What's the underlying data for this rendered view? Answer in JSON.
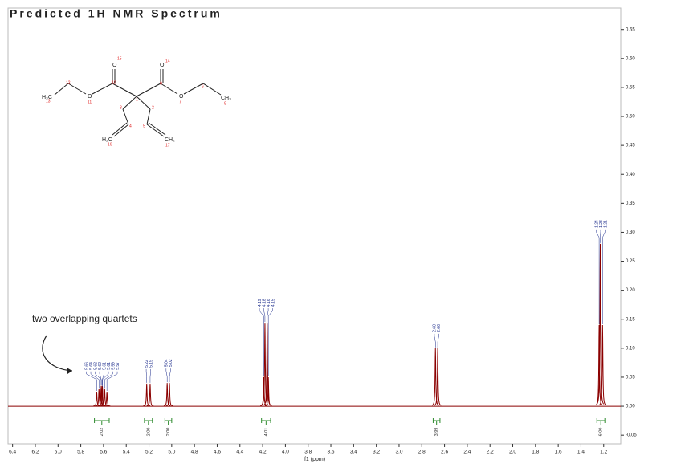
{
  "chart_data": {
    "type": "nmr",
    "title": "Predicted 1H NMR Spectrum",
    "xlabel": "f1 (ppm)",
    "annotation": "two overlapping quartets",
    "x": [
      5.66,
      5.64,
      5.62,
      5.62,
      5.61,
      5.61,
      5.59,
      5.57,
      5.22,
      5.19,
      5.04,
      5.02,
      4.19,
      4.18,
      4.16,
      4.15,
      2.68,
      2.66,
      1.24,
      1.23,
      1.21
    ],
    "values": [
      0.025,
      0.03,
      0.035,
      0.035,
      0.035,
      0.032,
      0.03,
      0.025,
      0.039,
      0.039,
      0.04,
      0.04,
      0.05,
      0.144,
      0.144,
      0.05,
      0.1,
      0.1,
      0.14,
      0.28,
      0.14
    ],
    "color": "#8b0000",
    "label_color": "#1a2a8a",
    "integrals": {
      "ranges": [
        [
          5.68,
          5.55
        ],
        [
          5.24,
          5.17
        ],
        [
          5.06,
          5.0
        ],
        [
          4.21,
          4.13
        ],
        [
          2.7,
          2.64
        ],
        [
          1.26,
          1.19
        ]
      ],
      "values": [
        2.02,
        2,
        2,
        4.01,
        3.99,
        6
      ],
      "value_labels": [
        "2.02",
        "2.00",
        "2.00",
        "4.01",
        "3.99",
        "6.00"
      ],
      "color": "#2e8b2e"
    },
    "xlim": [
      6.44,
      1.05
    ],
    "xticks": [
      6.4,
      6.2,
      {
        "value": 6,
        "label": "6.0"
      },
      5.8,
      5.6,
      5.4,
      5.2,
      {
        "value": 5,
        "label": "5.0"
      },
      4.8,
      4.6,
      4.4,
      4.2,
      {
        "value": 4,
        "label": "4.0"
      },
      3.8,
      3.6,
      3.4,
      3.2,
      {
        "value": 3,
        "label": "3.0"
      },
      2.8,
      2.6,
      2.4,
      2.2,
      {
        "value": 2,
        "label": "2.0"
      },
      1.8,
      1.6,
      1.4,
      1.2
    ],
    "ylim": [
      -0.065,
      0.687
    ],
    "yticks": [
      -0.05,
      {
        "value": 0,
        "label": "0.00"
      },
      0.05,
      {
        "value": 0.1,
        "label": "0.10"
      },
      0.15,
      {
        "value": 0.2,
        "label": "0.20"
      },
      0.25,
      {
        "value": 0.3,
        "label": "0.30"
      },
      0.35,
      {
        "value": 0.4,
        "label": "0.40"
      },
      0.45,
      {
        "value": 0.5,
        "label": "0.50"
      },
      0.55,
      {
        "value": 0.6,
        "label": "0.60"
      },
      0.65
    ]
  },
  "molecule": {
    "labels": [
      "O",
      "O",
      "H₃C",
      "O",
      "O",
      "CH₃",
      "H₂C",
      "CH₂"
    ],
    "numbers": [
      "15",
      "14",
      "12",
      "10",
      "8",
      "6",
      "13",
      "11",
      "1",
      "7",
      "9",
      "3",
      "2",
      "4",
      "5",
      "16",
      "17"
    ]
  }
}
